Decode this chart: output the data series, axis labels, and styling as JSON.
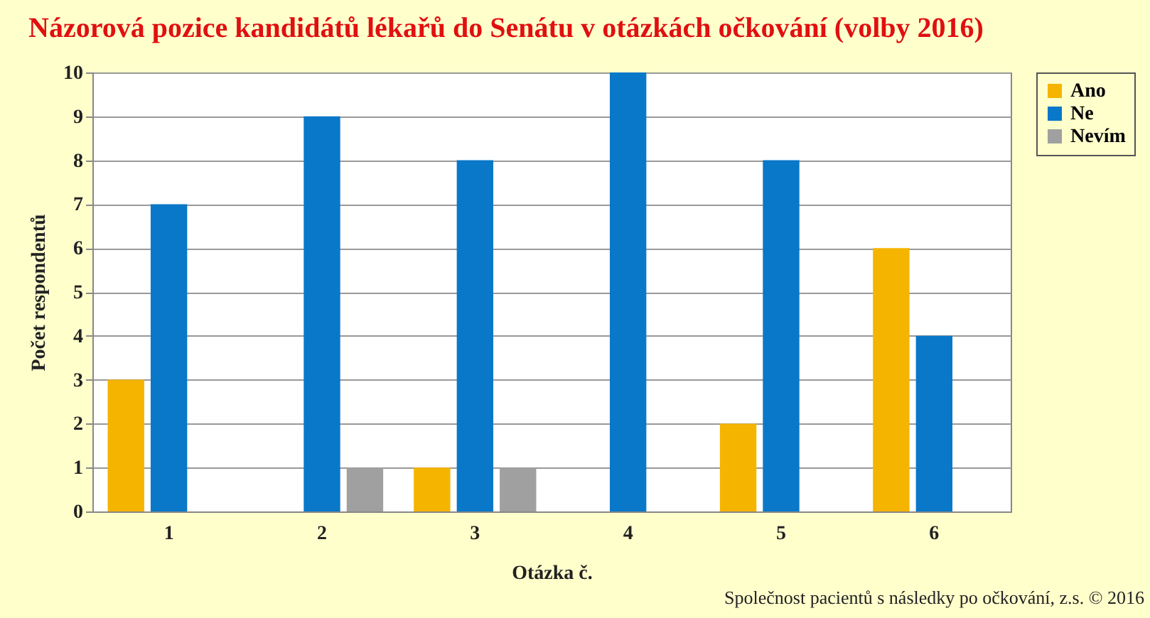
{
  "chart_data": {
    "type": "bar",
    "title": "Názorová pozice kandidátů lékařů do Senátu v otázkách očkování (volby 2016)",
    "xlabel": "Otázka č.",
    "ylabel": "Počet respondentů",
    "categories": [
      "1",
      "2",
      "3",
      "4",
      "5",
      "6"
    ],
    "series": [
      {
        "name": "Ano",
        "color": "#f5b400",
        "values": [
          3,
          0,
          1,
          0,
          2,
          6
        ]
      },
      {
        "name": "Ne",
        "color": "#0a78c8",
        "values": [
          7,
          9,
          8,
          10,
          8,
          4
        ]
      },
      {
        "name": "Nevím",
        "color": "#a0a0a0",
        "values": [
          0,
          1,
          1,
          0,
          0,
          0
        ]
      }
    ],
    "ylim": [
      0,
      10
    ],
    "yticks": [
      0,
      1,
      2,
      3,
      4,
      5,
      6,
      7,
      8,
      9,
      10
    ],
    "grid": "y",
    "legend": "right",
    "annotations": [
      "Společnost pacientů s následky po očkování, z.s. © 2016"
    ]
  }
}
